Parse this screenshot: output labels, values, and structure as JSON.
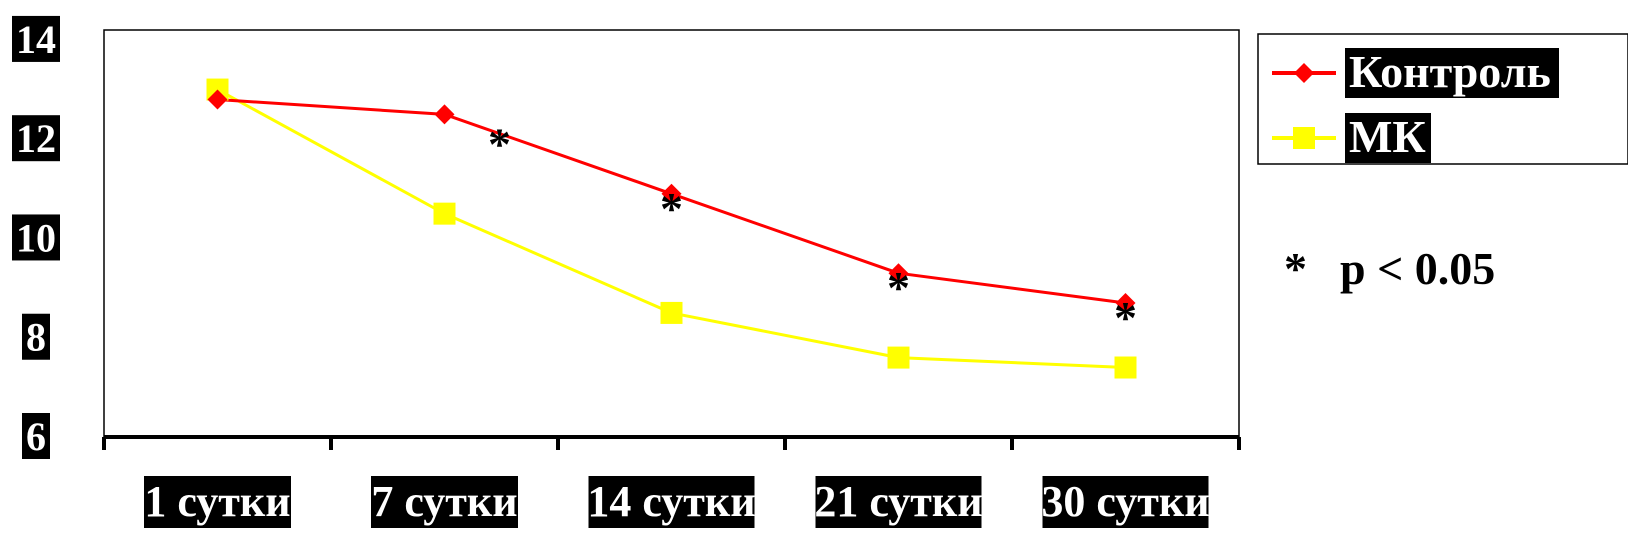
{
  "chart_data": {
    "type": "line",
    "categories": [
      "1 сутки",
      "7 сутки",
      "14 сутки",
      "21 сутки",
      "30 сутки"
    ],
    "series": [
      {
        "name": "Контроль",
        "color": "#ff0000",
        "marker": "diamond",
        "values": [
          12.8,
          12.5,
          10.9,
          9.3,
          8.7
        ]
      },
      {
        "name": "МК",
        "color": "#ffff00",
        "marker": "square",
        "values": [
          13.0,
          10.5,
          8.5,
          7.6,
          7.4
        ]
      }
    ],
    "significance": [
      {
        "category_index": 1,
        "value": 12.2,
        "label": "*"
      },
      {
        "category_index": 2,
        "value": 10.9,
        "label": "*"
      },
      {
        "category_index": 3,
        "value": 9.3,
        "label": "*"
      },
      {
        "category_index": 4,
        "value": 8.7,
        "label": "*"
      }
    ],
    "yticks": [
      14,
      12,
      10,
      8,
      6
    ],
    "ylim": [
      6,
      14.2
    ],
    "grid": false,
    "legend_position": "top-right",
    "note": {
      "star": "*",
      "text": "p < 0.05"
    }
  }
}
